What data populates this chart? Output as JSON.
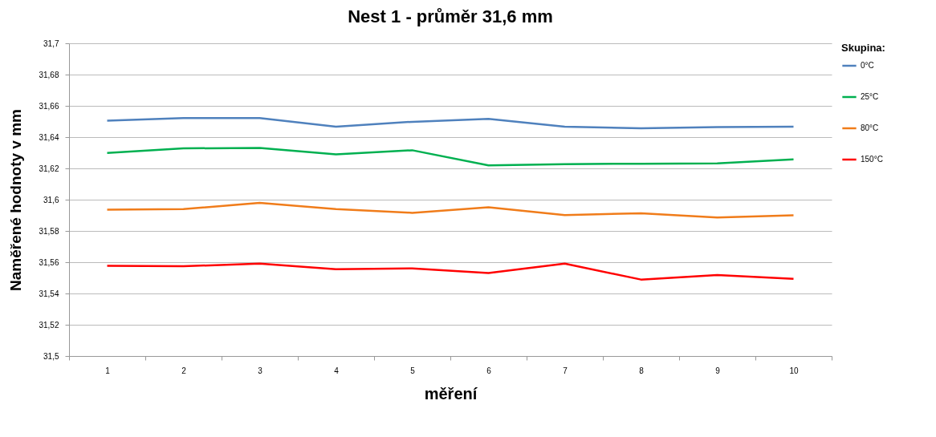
{
  "chart_data": {
    "type": "line",
    "title": "Nest 1 - průměr 31,6 mm",
    "xlabel": "měření",
    "ylabel": "Naměřené hodnoty v mm",
    "legend_title": "Skupina:",
    "categories": [
      "1",
      "2",
      "3",
      "4",
      "5",
      "6",
      "7",
      "8",
      "9",
      "10"
    ],
    "series": [
      {
        "name": "0°C",
        "color": "#4f81bd",
        "values": [
          31.6505,
          31.6522,
          31.6522,
          31.6467,
          31.6498,
          31.6517,
          31.6467,
          31.6456,
          31.6464,
          31.6467
        ]
      },
      {
        "name": "25°C",
        "color": "#00b050",
        "values": [
          31.6299,
          31.6328,
          31.6331,
          31.629,
          31.6316,
          31.6219,
          31.6227,
          31.623,
          31.6232,
          31.6258
        ]
      },
      {
        "name": "80°C",
        "color": "#f07c1a",
        "values": [
          31.5936,
          31.594,
          31.5979,
          31.594,
          31.5916,
          31.5951,
          31.5901,
          31.5913,
          31.5886,
          31.59
        ]
      },
      {
        "name": "150°C",
        "color": "#ff0000",
        "values": [
          31.5577,
          31.5574,
          31.5591,
          31.5555,
          31.556,
          31.5531,
          31.5591,
          31.5489,
          31.5518,
          31.5494
        ]
      }
    ],
    "ylim": [
      31.5,
      31.7
    ],
    "yticks": [
      {
        "value": 31.5,
        "label": "31,5"
      },
      {
        "value": 31.52,
        "label": "31,52"
      },
      {
        "value": 31.54,
        "label": "31,54"
      },
      {
        "value": 31.56,
        "label": "31,56"
      },
      {
        "value": 31.58,
        "label": "31,58"
      },
      {
        "value": 31.6,
        "label": "31,6"
      },
      {
        "value": 31.62,
        "label": "31,62"
      },
      {
        "value": 31.64,
        "label": "31,64"
      },
      {
        "value": 31.66,
        "label": "31,66"
      },
      {
        "value": 31.68,
        "label": "31,68"
      },
      {
        "value": 31.7,
        "label": "31,7"
      }
    ],
    "grid": "y",
    "legend": "top right",
    "marker": "none",
    "line_style": "solid"
  }
}
